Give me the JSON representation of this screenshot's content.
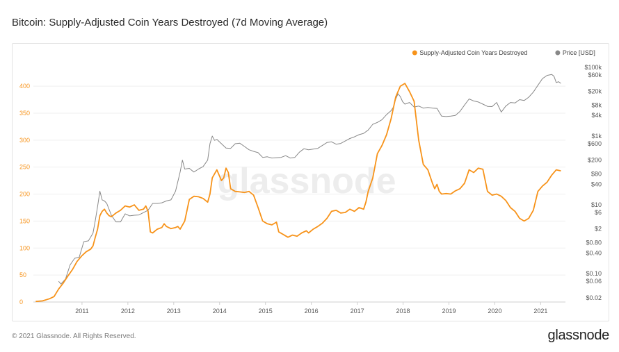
{
  "header": {
    "title": "Bitcoin: Supply-Adjusted Coin Years Destroyed (7d Moving Average)"
  },
  "footer": {
    "copyright": "© 2021 Glassnode. All Rights Reserved.",
    "brand": "glassnode"
  },
  "watermark": "glassnode",
  "chart_data": {
    "type": "line",
    "title": "Bitcoin: Supply-Adjusted Coin Years Destroyed (7d Moving Average)",
    "legend_position": "top-right",
    "grid": true,
    "x_ticks": [
      "2011",
      "2012",
      "2013",
      "2014",
      "2015",
      "2016",
      "2017",
      "2018",
      "2019",
      "2020",
      "2021"
    ],
    "xlim": [
      2010.0,
      2021.6
    ],
    "y_left": {
      "ticks": [
        0,
        50,
        100,
        150,
        200,
        250,
        300,
        350,
        400
      ],
      "lim": [
        0,
        440
      ]
    },
    "y_right": {
      "scale": "log",
      "lim": [
        0.015,
        120000
      ],
      "ticks": [
        {
          "v": 100000,
          "label": "$100k"
        },
        {
          "v": 60000,
          "label": "$60k"
        },
        {
          "v": 20000,
          "label": "$20k"
        },
        {
          "v": 8000,
          "label": "$8k"
        },
        {
          "v": 4000,
          "label": "$4k"
        },
        {
          "v": 1000,
          "label": "$1k"
        },
        {
          "v": 600,
          "label": "$600"
        },
        {
          "v": 200,
          "label": "$200"
        },
        {
          "v": 80,
          "label": "$80"
        },
        {
          "v": 40,
          "label": "$40"
        },
        {
          "v": 10,
          "label": "$10"
        },
        {
          "v": 6,
          "label": "$6"
        },
        {
          "v": 2,
          "label": "$2"
        },
        {
          "v": 0.8,
          "label": "$0.80"
        },
        {
          "v": 0.4,
          "label": "$0.40"
        },
        {
          "v": 0.1,
          "label": "$0.10"
        },
        {
          "v": 0.06,
          "label": "$0.06"
        },
        {
          "v": 0.02,
          "label": "$0.02"
        }
      ]
    },
    "series": [
      {
        "name": "Supply-Adjusted Coin Years Destroyed",
        "axis": "left",
        "color": "#f7931a",
        "points": [
          [
            2010.05,
            1
          ],
          [
            2010.2,
            2
          ],
          [
            2010.35,
            6
          ],
          [
            2010.45,
            10
          ],
          [
            2010.55,
            24
          ],
          [
            2010.65,
            35
          ],
          [
            2010.75,
            48
          ],
          [
            2010.85,
            60
          ],
          [
            2010.95,
            75
          ],
          [
            2011.05,
            85
          ],
          [
            2011.15,
            93
          ],
          [
            2011.25,
            98
          ],
          [
            2011.3,
            104
          ],
          [
            2011.35,
            120
          ],
          [
            2011.4,
            135
          ],
          [
            2011.45,
            160
          ],
          [
            2011.5,
            168
          ],
          [
            2011.55,
            172
          ],
          [
            2011.6,
            165
          ],
          [
            2011.65,
            160
          ],
          [
            2011.7,
            158
          ],
          [
            2011.8,
            165
          ],
          [
            2011.9,
            170
          ],
          [
            2012.0,
            178
          ],
          [
            2012.1,
            176
          ],
          [
            2012.2,
            180
          ],
          [
            2012.3,
            170
          ],
          [
            2012.4,
            172
          ],
          [
            2012.45,
            178
          ],
          [
            2012.5,
            168
          ],
          [
            2012.55,
            130
          ],
          [
            2012.6,
            128
          ],
          [
            2012.7,
            135
          ],
          [
            2012.8,
            138
          ],
          [
            2012.85,
            145
          ],
          [
            2012.9,
            140
          ],
          [
            2013.0,
            136
          ],
          [
            2013.1,
            138
          ],
          [
            2013.15,
            140
          ],
          [
            2013.2,
            135
          ],
          [
            2013.3,
            150
          ],
          [
            2013.4,
            190
          ],
          [
            2013.5,
            196
          ],
          [
            2013.6,
            195
          ],
          [
            2013.7,
            192
          ],
          [
            2013.8,
            185
          ],
          [
            2013.85,
            200
          ],
          [
            2013.9,
            230
          ],
          [
            2014.0,
            245
          ],
          [
            2014.1,
            225
          ],
          [
            2014.15,
            230
          ],
          [
            2014.2,
            248
          ],
          [
            2014.25,
            240
          ],
          [
            2014.3,
            210
          ],
          [
            2014.4,
            205
          ],
          [
            2014.5,
            204
          ],
          [
            2014.6,
            203
          ],
          [
            2014.7,
            205
          ],
          [
            2014.8,
            198
          ],
          [
            2014.9,
            175
          ],
          [
            2015.0,
            150
          ],
          [
            2015.1,
            145
          ],
          [
            2015.2,
            143
          ],
          [
            2015.3,
            148
          ],
          [
            2015.35,
            130
          ],
          [
            2015.45,
            125
          ],
          [
            2015.55,
            120
          ],
          [
            2015.65,
            124
          ],
          [
            2015.75,
            122
          ],
          [
            2015.85,
            128
          ],
          [
            2015.95,
            132
          ],
          [
            2016.0,
            128
          ],
          [
            2016.1,
            135
          ],
          [
            2016.2,
            140
          ],
          [
            2016.3,
            146
          ],
          [
            2016.4,
            155
          ],
          [
            2016.5,
            168
          ],
          [
            2016.6,
            170
          ],
          [
            2016.7,
            165
          ],
          [
            2016.8,
            166
          ],
          [
            2016.9,
            172
          ],
          [
            2017.0,
            168
          ],
          [
            2017.1,
            175
          ],
          [
            2017.2,
            172
          ],
          [
            2017.25,
            185
          ],
          [
            2017.3,
            205
          ],
          [
            2017.4,
            230
          ],
          [
            2017.5,
            275
          ],
          [
            2017.6,
            290
          ],
          [
            2017.7,
            310
          ],
          [
            2017.8,
            340
          ],
          [
            2017.9,
            380
          ],
          [
            2018.0,
            400
          ],
          [
            2018.1,
            405
          ],
          [
            2018.2,
            390
          ],
          [
            2018.3,
            372
          ],
          [
            2018.4,
            300
          ],
          [
            2018.5,
            255
          ],
          [
            2018.6,
            245
          ],
          [
            2018.7,
            220
          ],
          [
            2018.75,
            210
          ],
          [
            2018.8,
            218
          ],
          [
            2018.85,
            205
          ],
          [
            2018.9,
            200
          ],
          [
            2019.0,
            201
          ],
          [
            2019.1,
            200
          ],
          [
            2019.2,
            206
          ],
          [
            2019.3,
            210
          ],
          [
            2019.4,
            220
          ],
          [
            2019.5,
            245
          ],
          [
            2019.6,
            240
          ],
          [
            2019.7,
            248
          ],
          [
            2019.8,
            246
          ],
          [
            2019.9,
            205
          ],
          [
            2020.0,
            198
          ],
          [
            2020.1,
            200
          ],
          [
            2020.2,
            196
          ],
          [
            2020.3,
            188
          ],
          [
            2020.4,
            175
          ],
          [
            2020.5,
            168
          ],
          [
            2020.6,
            155
          ],
          [
            2020.7,
            150
          ],
          [
            2020.8,
            155
          ],
          [
            2020.9,
            170
          ],
          [
            2021.0,
            205
          ],
          [
            2021.1,
            215
          ],
          [
            2021.2,
            222
          ],
          [
            2021.3,
            235
          ],
          [
            2021.4,
            245
          ],
          [
            2021.5,
            243
          ]
        ]
      },
      {
        "name": "Price [USD]",
        "axis": "right",
        "color": "#888888",
        "points": [
          [
            2010.55,
            0.06
          ],
          [
            2010.6,
            0.05
          ],
          [
            2010.7,
            0.07
          ],
          [
            2010.8,
            0.18
          ],
          [
            2010.9,
            0.28
          ],
          [
            2011.0,
            0.3
          ],
          [
            2011.1,
            0.85
          ],
          [
            2011.2,
            0.9
          ],
          [
            2011.3,
            1.5
          ],
          [
            2011.35,
            3.5
          ],
          [
            2011.4,
            9
          ],
          [
            2011.45,
            25
          ],
          [
            2011.5,
            14
          ],
          [
            2011.55,
            13
          ],
          [
            2011.6,
            11
          ],
          [
            2011.7,
            5
          ],
          [
            2011.8,
            3.2
          ],
          [
            2011.9,
            3.2
          ],
          [
            2012.0,
            5.5
          ],
          [
            2012.1,
            4.8
          ],
          [
            2012.2,
            5
          ],
          [
            2012.3,
            5.1
          ],
          [
            2012.5,
            7
          ],
          [
            2012.6,
            11
          ],
          [
            2012.7,
            11
          ],
          [
            2012.8,
            11.5
          ],
          [
            2012.9,
            13
          ],
          [
            2013.0,
            14
          ],
          [
            2013.1,
            25
          ],
          [
            2013.2,
            90
          ],
          [
            2013.25,
            200
          ],
          [
            2013.3,
            110
          ],
          [
            2013.4,
            115
          ],
          [
            2013.5,
            90
          ],
          [
            2013.6,
            110
          ],
          [
            2013.7,
            130
          ],
          [
            2013.8,
            200
          ],
          [
            2013.85,
            600
          ],
          [
            2013.9,
            1000
          ],
          [
            2013.95,
            750
          ],
          [
            2014.0,
            800
          ],
          [
            2014.1,
            600
          ],
          [
            2014.2,
            450
          ],
          [
            2014.3,
            440
          ],
          [
            2014.4,
            600
          ],
          [
            2014.5,
            620
          ],
          [
            2014.6,
            500
          ],
          [
            2014.7,
            400
          ],
          [
            2014.8,
            360
          ],
          [
            2014.9,
            330
          ],
          [
            2015.0,
            240
          ],
          [
            2015.1,
            250
          ],
          [
            2015.2,
            230
          ],
          [
            2015.4,
            240
          ],
          [
            2015.5,
            270
          ],
          [
            2015.6,
            230
          ],
          [
            2015.7,
            240
          ],
          [
            2015.8,
            340
          ],
          [
            2015.9,
            430
          ],
          [
            2016.0,
            400
          ],
          [
            2016.1,
            420
          ],
          [
            2016.2,
            440
          ],
          [
            2016.4,
            650
          ],
          [
            2016.5,
            680
          ],
          [
            2016.6,
            580
          ],
          [
            2016.7,
            610
          ],
          [
            2016.8,
            720
          ],
          [
            2016.9,
            850
          ],
          [
            2017.0,
            950
          ],
          [
            2017.1,
            1100
          ],
          [
            2017.2,
            1200
          ],
          [
            2017.3,
            1500
          ],
          [
            2017.4,
            2200
          ],
          [
            2017.5,
            2500
          ],
          [
            2017.6,
            3000
          ],
          [
            2017.7,
            4200
          ],
          [
            2017.8,
            5500
          ],
          [
            2017.85,
            7000
          ],
          [
            2017.9,
            12000
          ],
          [
            2017.95,
            17000
          ],
          [
            2018.0,
            14000
          ],
          [
            2018.05,
            10000
          ],
          [
            2018.1,
            8500
          ],
          [
            2018.2,
            9500
          ],
          [
            2018.3,
            7000
          ],
          [
            2018.4,
            7500
          ],
          [
            2018.5,
            6500
          ],
          [
            2018.6,
            6800
          ],
          [
            2018.7,
            6500
          ],
          [
            2018.8,
            6400
          ],
          [
            2018.9,
            3800
          ],
          [
            2019.0,
            3700
          ],
          [
            2019.1,
            3800
          ],
          [
            2019.2,
            4000
          ],
          [
            2019.3,
            5200
          ],
          [
            2019.4,
            8000
          ],
          [
            2019.5,
            12000
          ],
          [
            2019.6,
            10500
          ],
          [
            2019.7,
            9800
          ],
          [
            2019.8,
            8500
          ],
          [
            2019.9,
            7300
          ],
          [
            2020.0,
            7200
          ],
          [
            2020.1,
            9500
          ],
          [
            2020.2,
            5000
          ],
          [
            2020.3,
            7500
          ],
          [
            2020.4,
            9500
          ],
          [
            2020.5,
            9200
          ],
          [
            2020.6,
            11500
          ],
          [
            2020.7,
            10800
          ],
          [
            2020.8,
            13500
          ],
          [
            2020.9,
            19000
          ],
          [
            2021.0,
            30000
          ],
          [
            2021.1,
            47000
          ],
          [
            2021.2,
            58000
          ],
          [
            2021.3,
            62000
          ],
          [
            2021.35,
            55000
          ],
          [
            2021.4,
            36000
          ],
          [
            2021.45,
            38000
          ],
          [
            2021.5,
            34000
          ]
        ]
      }
    ]
  }
}
